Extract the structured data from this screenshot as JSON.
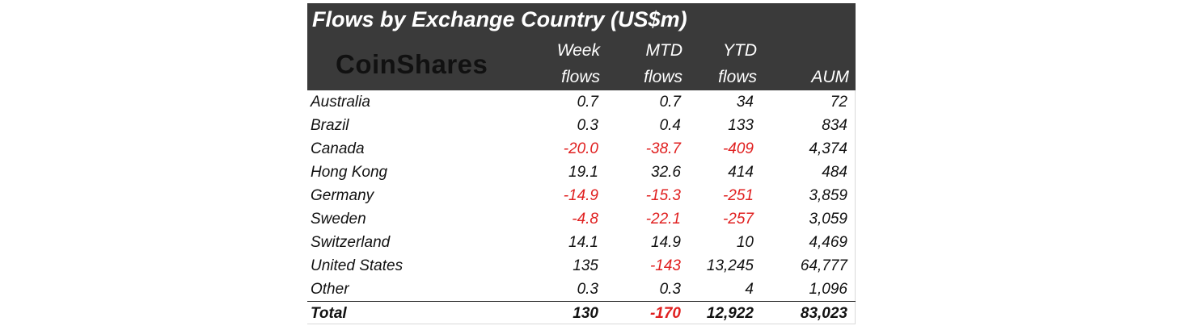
{
  "chart_data": {
    "type": "table",
    "title": "Flows by Exchange Country (US$m)",
    "logo_text": "CoinShares",
    "columns": [
      {
        "line1": "Week",
        "line2": "flows"
      },
      {
        "line1": "MTD",
        "line2": "flows"
      },
      {
        "line1": "YTD",
        "line2": "flows"
      },
      {
        "line1": "",
        "line2": "AUM"
      }
    ],
    "rows": [
      {
        "country": "Australia",
        "week": "0.7",
        "mtd": "0.7",
        "ytd": "34",
        "aum": "72"
      },
      {
        "country": "Brazil",
        "week": "0.3",
        "mtd": "0.4",
        "ytd": "133",
        "aum": "834"
      },
      {
        "country": "Canada",
        "week": "-20.0",
        "mtd": "-38.7",
        "ytd": "-409",
        "aum": "4,374"
      },
      {
        "country": "Hong Kong",
        "week": "19.1",
        "mtd": "32.6",
        "ytd": "414",
        "aum": "484"
      },
      {
        "country": "Germany",
        "week": "-14.9",
        "mtd": "-15.3",
        "ytd": "-251",
        "aum": "3,859"
      },
      {
        "country": "Sweden",
        "week": "-4.8",
        "mtd": "-22.1",
        "ytd": "-257",
        "aum": "3,059"
      },
      {
        "country": "Switzerland",
        "week": "14.1",
        "mtd": "14.9",
        "ytd": "10",
        "aum": "4,469"
      },
      {
        "country": "United States",
        "week": "135",
        "mtd": "-143",
        "ytd": "13,245",
        "aum": "64,777"
      },
      {
        "country": "Other",
        "week": "0.3",
        "mtd": "0.3",
        "ytd": "4",
        "aum": "1,096"
      }
    ],
    "total": {
      "country": "Total",
      "week": "130",
      "mtd": "-170",
      "ytd": "12,922",
      "aum": "83,023"
    },
    "colors": {
      "header_bg": "#3a3a3a",
      "negative": "#e02020",
      "text": "#111111"
    }
  }
}
